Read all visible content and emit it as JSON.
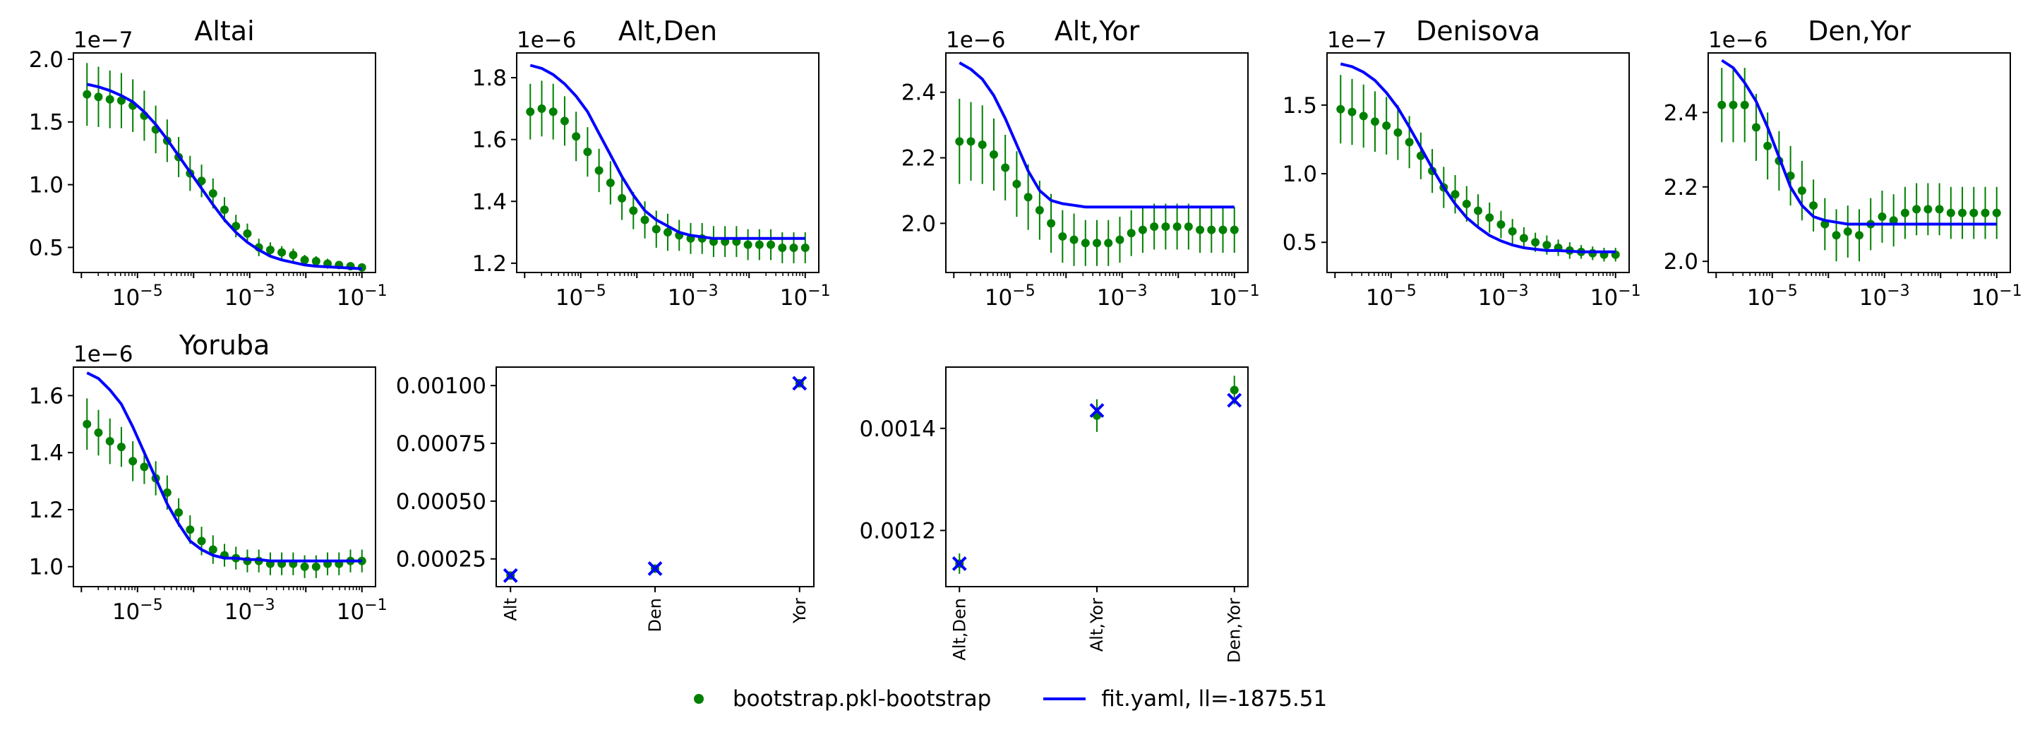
{
  "legend": {
    "entries": [
      {
        "label": "bootstrap.pkl-bootstrap",
        "color": "#008000",
        "marker": "dot"
      },
      {
        "label": "fit.yaml, ll=-1875.51",
        "color": "#0000ff",
        "marker": "line"
      }
    ]
  },
  "chart_data": [
    {
      "type": "line",
      "title": "Altai",
      "xscale": "log",
      "xlim": [
        1.26e-06,
        0.1
      ],
      "xticks": [
        1e-05,
        0.001,
        0.1
      ],
      "xtick_labels": [
        "10^-5",
        "10^-3",
        "10^-1"
      ],
      "ylim": [
        0.3,
        2.05
      ],
      "yticks": [
        0.5,
        1.0,
        1.5,
        2.0
      ],
      "ytick_labels": [
        "0.5",
        "1.0",
        "1.5",
        "2.0"
      ],
      "offset_text": "1e-7",
      "series": [
        {
          "name": "bootstrap.pkl-bootstrap",
          "kind": "errorbar",
          "color": "#008000",
          "y": [
            1.72,
            1.7,
            1.68,
            1.67,
            1.63,
            1.55,
            1.44,
            1.35,
            1.22,
            1.09,
            1.03,
            0.93,
            0.8,
            0.67,
            0.61,
            0.5,
            0.48,
            0.46,
            0.44,
            0.4,
            0.39,
            0.37,
            0.36,
            0.35,
            0.34
          ],
          "yerr": [
            0.25,
            0.24,
            0.23,
            0.22,
            0.21,
            0.2,
            0.19,
            0.17,
            0.16,
            0.14,
            0.13,
            0.12,
            0.1,
            0.09,
            0.08,
            0.07,
            0.06,
            0.05,
            0.05,
            0.04,
            0.04,
            0.04,
            0.03,
            0.03,
            0.03
          ]
        },
        {
          "name": "fit.yaml, ll=-1875.51",
          "kind": "line",
          "color": "#0000ff",
          "y": [
            1.8,
            1.78,
            1.75,
            1.71,
            1.66,
            1.58,
            1.48,
            1.36,
            1.23,
            1.1,
            0.97,
            0.84,
            0.72,
            0.62,
            0.54,
            0.48,
            0.43,
            0.4,
            0.38,
            0.36,
            0.35,
            0.345,
            0.34,
            0.335,
            0.33
          ]
        }
      ]
    },
    {
      "type": "line",
      "title": "Alt,Den",
      "xscale": "log",
      "xlim": [
        1.26e-06,
        0.1
      ],
      "xticks": [
        1e-05,
        0.001,
        0.1
      ],
      "xtick_labels": [
        "10^-5",
        "10^-3",
        "10^-1"
      ],
      "ylim": [
        1.17,
        1.88
      ],
      "yticks": [
        1.2,
        1.4,
        1.6,
        1.8
      ],
      "ytick_labels": [
        "1.2",
        "1.4",
        "1.6",
        "1.8"
      ],
      "offset_text": "1e-6",
      "series": [
        {
          "name": "bootstrap.pkl-bootstrap",
          "kind": "errorbar",
          "color": "#008000",
          "y": [
            1.69,
            1.7,
            1.69,
            1.66,
            1.61,
            1.56,
            1.5,
            1.46,
            1.41,
            1.37,
            1.34,
            1.31,
            1.3,
            1.29,
            1.28,
            1.28,
            1.27,
            1.27,
            1.27,
            1.26,
            1.26,
            1.26,
            1.25,
            1.25,
            1.25
          ],
          "yerr": [
            0.09,
            0.09,
            0.09,
            0.08,
            0.08,
            0.08,
            0.07,
            0.07,
            0.07,
            0.06,
            0.06,
            0.06,
            0.06,
            0.05,
            0.05,
            0.05,
            0.05,
            0.05,
            0.05,
            0.05,
            0.05,
            0.05,
            0.05,
            0.05,
            0.05
          ]
        },
        {
          "name": "fit.yaml, ll=-1875.51",
          "kind": "line",
          "color": "#0000ff",
          "y": [
            1.84,
            1.83,
            1.81,
            1.78,
            1.74,
            1.69,
            1.62,
            1.55,
            1.48,
            1.42,
            1.37,
            1.34,
            1.32,
            1.3,
            1.29,
            1.285,
            1.28,
            1.28,
            1.28,
            1.28,
            1.28,
            1.28,
            1.28,
            1.28,
            1.28
          ]
        }
      ]
    },
    {
      "type": "line",
      "title": "Alt,Yor",
      "xscale": "log",
      "xlim": [
        1.26e-06,
        0.1
      ],
      "xticks": [
        1e-05,
        0.001,
        0.1
      ],
      "xtick_labels": [
        "10^-5",
        "10^-3",
        "10^-1"
      ],
      "ylim": [
        1.85,
        2.52
      ],
      "yticks": [
        2.0,
        2.2,
        2.4
      ],
      "ytick_labels": [
        "2.0",
        "2.2",
        "2.4"
      ],
      "offset_text": "1e-6",
      "series": [
        {
          "name": "bootstrap.pkl-bootstrap",
          "kind": "errorbar",
          "color": "#008000",
          "y": [
            2.25,
            2.25,
            2.24,
            2.21,
            2.17,
            2.12,
            2.08,
            2.04,
            2.0,
            1.96,
            1.95,
            1.94,
            1.94,
            1.94,
            1.95,
            1.97,
            1.98,
            1.99,
            1.99,
            1.99,
            1.99,
            1.98,
            1.98,
            1.98,
            1.98
          ],
          "yerr": [
            0.13,
            0.12,
            0.12,
            0.11,
            0.1,
            0.1,
            0.1,
            0.09,
            0.09,
            0.08,
            0.08,
            0.07,
            0.07,
            0.07,
            0.07,
            0.07,
            0.07,
            0.07,
            0.07,
            0.07,
            0.07,
            0.07,
            0.07,
            0.07,
            0.07
          ]
        },
        {
          "name": "fit.yaml, ll=-1875.51",
          "kind": "line",
          "color": "#0000ff",
          "y": [
            2.49,
            2.47,
            2.44,
            2.39,
            2.32,
            2.24,
            2.16,
            2.1,
            2.07,
            2.06,
            2.055,
            2.05,
            2.05,
            2.05,
            2.05,
            2.05,
            2.05,
            2.05,
            2.05,
            2.05,
            2.05,
            2.05,
            2.05,
            2.05,
            2.05
          ]
        }
      ]
    },
    {
      "type": "line",
      "title": "Denisova",
      "xscale": "log",
      "xlim": [
        1.26e-06,
        0.1
      ],
      "xticks": [
        1e-05,
        0.001,
        0.1
      ],
      "xtick_labels": [
        "10^-5",
        "10^-3",
        "10^-1"
      ],
      "ylim": [
        0.28,
        1.88
      ],
      "yticks": [
        0.5,
        1.0,
        1.5
      ],
      "ytick_labels": [
        "0.5",
        "1.0",
        "1.5"
      ],
      "offset_text": "1e-7",
      "series": [
        {
          "name": "bootstrap.pkl-bootstrap",
          "kind": "errorbar",
          "color": "#008000",
          "y": [
            1.47,
            1.45,
            1.42,
            1.38,
            1.35,
            1.3,
            1.23,
            1.13,
            1.02,
            0.9,
            0.85,
            0.78,
            0.73,
            0.68,
            0.63,
            0.58,
            0.53,
            0.5,
            0.48,
            0.46,
            0.44,
            0.43,
            0.42,
            0.41,
            0.41
          ],
          "yerr": [
            0.25,
            0.24,
            0.23,
            0.22,
            0.21,
            0.2,
            0.19,
            0.17,
            0.16,
            0.15,
            0.14,
            0.13,
            0.12,
            0.11,
            0.1,
            0.09,
            0.08,
            0.07,
            0.07,
            0.06,
            0.06,
            0.05,
            0.05,
            0.05,
            0.05
          ]
        },
        {
          "name": "fit.yaml, ll=-1875.51",
          "kind": "line",
          "color": "#0000ff",
          "y": [
            1.8,
            1.78,
            1.74,
            1.68,
            1.59,
            1.48,
            1.34,
            1.19,
            1.04,
            0.9,
            0.78,
            0.68,
            0.61,
            0.55,
            0.51,
            0.48,
            0.46,
            0.45,
            0.44,
            0.44,
            0.435,
            0.43,
            0.43,
            0.43,
            0.43
          ]
        }
      ]
    },
    {
      "type": "line",
      "title": "Den,Yor",
      "xscale": "log",
      "xlim": [
        1.26e-06,
        0.1
      ],
      "xticks": [
        1e-05,
        0.001,
        0.1
      ],
      "xtick_labels": [
        "10^-5",
        "10^-3",
        "10^-1"
      ],
      "ylim": [
        1.97,
        2.56
      ],
      "yticks": [
        2.0,
        2.2,
        2.4
      ],
      "ytick_labels": [
        "2.0",
        "2.2",
        "2.4"
      ],
      "offset_text": "1e-6",
      "series": [
        {
          "name": "bootstrap.pkl-bootstrap",
          "kind": "errorbar",
          "color": "#008000",
          "y": [
            2.42,
            2.42,
            2.42,
            2.36,
            2.31,
            2.27,
            2.23,
            2.19,
            2.15,
            2.1,
            2.07,
            2.08,
            2.07,
            2.1,
            2.12,
            2.11,
            2.13,
            2.14,
            2.14,
            2.14,
            2.13,
            2.13,
            2.13,
            2.13,
            2.13
          ],
          "yerr": [
            0.1,
            0.1,
            0.1,
            0.09,
            0.09,
            0.08,
            0.08,
            0.08,
            0.07,
            0.07,
            0.07,
            0.07,
            0.07,
            0.07,
            0.07,
            0.07,
            0.07,
            0.07,
            0.07,
            0.07,
            0.07,
            0.07,
            0.07,
            0.07,
            0.07
          ]
        },
        {
          "name": "fit.yaml, ll=-1875.51",
          "kind": "line",
          "color": "#0000ff",
          "y": [
            2.54,
            2.52,
            2.48,
            2.43,
            2.36,
            2.28,
            2.2,
            2.15,
            2.12,
            2.11,
            2.105,
            2.1,
            2.1,
            2.1,
            2.1,
            2.1,
            2.1,
            2.1,
            2.1,
            2.1,
            2.1,
            2.1,
            2.1,
            2.1,
            2.1
          ]
        }
      ]
    },
    {
      "type": "line",
      "title": "Yoruba",
      "xscale": "log",
      "xlim": [
        1.26e-06,
        0.1
      ],
      "xticks": [
        1e-05,
        0.001,
        0.1
      ],
      "xtick_labels": [
        "10^-5",
        "10^-3",
        "10^-1"
      ],
      "ylim": [
        0.93,
        1.7
      ],
      "yticks": [
        1.0,
        1.2,
        1.4,
        1.6
      ],
      "ytick_labels": [
        "1.0",
        "1.2",
        "1.4",
        "1.6"
      ],
      "offset_text": "1e-6",
      "series": [
        {
          "name": "bootstrap.pkl-bootstrap",
          "kind": "errorbar",
          "color": "#008000",
          "y": [
            1.5,
            1.47,
            1.44,
            1.42,
            1.37,
            1.35,
            1.31,
            1.26,
            1.19,
            1.13,
            1.09,
            1.06,
            1.04,
            1.03,
            1.02,
            1.02,
            1.01,
            1.01,
            1.01,
            1.0,
            1.0,
            1.01,
            1.01,
            1.02,
            1.02
          ],
          "yerr": [
            0.09,
            0.08,
            0.08,
            0.07,
            0.07,
            0.06,
            0.06,
            0.06,
            0.05,
            0.05,
            0.05,
            0.05,
            0.04,
            0.04,
            0.04,
            0.04,
            0.04,
            0.04,
            0.04,
            0.04,
            0.04,
            0.04,
            0.04,
            0.04,
            0.04
          ]
        },
        {
          "name": "fit.yaml, ll=-1875.51",
          "kind": "line",
          "color": "#0000ff",
          "y": [
            1.68,
            1.66,
            1.62,
            1.57,
            1.49,
            1.4,
            1.31,
            1.22,
            1.15,
            1.09,
            1.06,
            1.04,
            1.03,
            1.03,
            1.025,
            1.025,
            1.02,
            1.02,
            1.02,
            1.02,
            1.02,
            1.02,
            1.02,
            1.02,
            1.02
          ]
        }
      ]
    },
    {
      "type": "scatter",
      "title": "",
      "xscale": "category",
      "categories": [
        "Alt",
        "Den",
        "Yor"
      ],
      "ylim": [
        0.00013,
        0.00108
      ],
      "yticks": [
        0.00025,
        0.0005,
        0.00075,
        0.001
      ],
      "ytick_labels": [
        "0.00025",
        "0.00050",
        "0.00075",
        "0.00100"
      ],
      "offset_text": "",
      "series": [
        {
          "name": "bootstrap.pkl-bootstrap",
          "kind": "errorbar",
          "color": "#008000",
          "y": [
            0.000178,
            0.000208,
            0.00101
          ],
          "yerr": [
            8e-06,
            8e-06,
            1.2e-05
          ]
        },
        {
          "name": "fit.yaml, ll=-1875.51",
          "kind": "x",
          "color": "#0000ff",
          "y": [
            0.000178,
            0.000208,
            0.00101
          ]
        }
      ]
    },
    {
      "type": "scatter",
      "title": "",
      "xscale": "category",
      "categories": [
        "Alt,Den",
        "Alt,Yor",
        "Den,Yor"
      ],
      "ylim": [
        0.00109,
        0.00152
      ],
      "yticks": [
        0.0012,
        0.0014
      ],
      "ytick_labels": [
        "0.0012",
        "0.0014"
      ],
      "offset_text": "",
      "series": [
        {
          "name": "bootstrap.pkl-bootstrap",
          "kind": "errorbar",
          "color": "#008000",
          "y": [
            0.001135,
            0.001425,
            0.001475
          ],
          "yerr": [
            2e-05,
            3.2e-05,
            2.8e-05
          ]
        },
        {
          "name": "fit.yaml, ll=-1875.51",
          "kind": "x",
          "color": "#0000ff",
          "y": [
            0.001135,
            0.001435,
            0.001455
          ]
        }
      ]
    }
  ]
}
